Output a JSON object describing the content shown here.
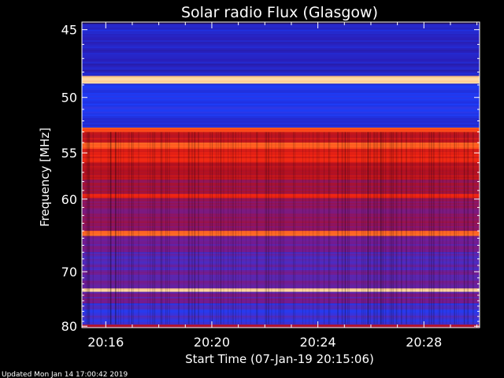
{
  "chart_data": {
    "type": "heatmap",
    "title": "Solar radio Flux (Glasgow)",
    "xlabel": "Start Time (07-Jan-19 20:15:06)",
    "ylabel": "Frequency [MHz]",
    "x_ticks": [
      "20:16",
      "20:20",
      "20:24",
      "20:28"
    ],
    "x_tick_minutes": [
      16,
      20,
      24,
      28
    ],
    "xlim_minutes": [
      15.1,
      30.1
    ],
    "y_ticks": [
      45,
      50,
      55,
      60,
      70,
      80
    ],
    "ylim": [
      44.5,
      80.3
    ],
    "y_scale": "reciprocal",
    "colormap": [
      "#1a0a3a",
      "#2c1cb0",
      "#1a40ff",
      "#7a1a8a",
      "#b01020",
      "#ff2a10",
      "#ff8a30",
      "#ffe0b0"
    ],
    "bands": [
      {
        "from": 44.6,
        "to": 45.3,
        "level": 0.2
      },
      {
        "from": 45.3,
        "to": 48.3,
        "level": 0.18
      },
      {
        "from": 48.3,
        "to": 48.9,
        "level": 0.98
      },
      {
        "from": 48.9,
        "to": 50.5,
        "level": 0.25
      },
      {
        "from": 50.5,
        "to": 51.6,
        "level": 0.28
      },
      {
        "from": 51.6,
        "to": 52.6,
        "level": 0.2
      },
      {
        "from": 52.6,
        "to": 53.0,
        "level": 0.75
      },
      {
        "from": 53.0,
        "to": 54.0,
        "level": 0.62
      },
      {
        "from": 54.0,
        "to": 54.6,
        "level": 0.8
      },
      {
        "from": 54.6,
        "to": 56.0,
        "level": 0.66
      },
      {
        "from": 56.0,
        "to": 57.8,
        "level": 0.58
      },
      {
        "from": 57.8,
        "to": 59.4,
        "level": 0.52
      },
      {
        "from": 59.4,
        "to": 59.9,
        "level": 0.7
      },
      {
        "from": 59.9,
        "to": 64.0,
        "level": 0.48
      },
      {
        "from": 64.0,
        "to": 64.7,
        "level": 0.82
      },
      {
        "from": 64.7,
        "to": 67.0,
        "level": 0.42
      },
      {
        "from": 67.0,
        "to": 70.0,
        "level": 0.38
      },
      {
        "from": 70.0,
        "to": 72.8,
        "level": 0.4
      },
      {
        "from": 72.8,
        "to": 73.4,
        "level": 0.97
      },
      {
        "from": 73.4,
        "to": 75.5,
        "level": 0.42
      },
      {
        "from": 75.5,
        "to": 79.7,
        "level": 0.33
      },
      {
        "from": 79.7,
        "to": 80.3,
        "level": 0.55
      }
    ]
  },
  "footer": {
    "updated": "Updated Mon Jan 14 17:00:42 2019"
  }
}
